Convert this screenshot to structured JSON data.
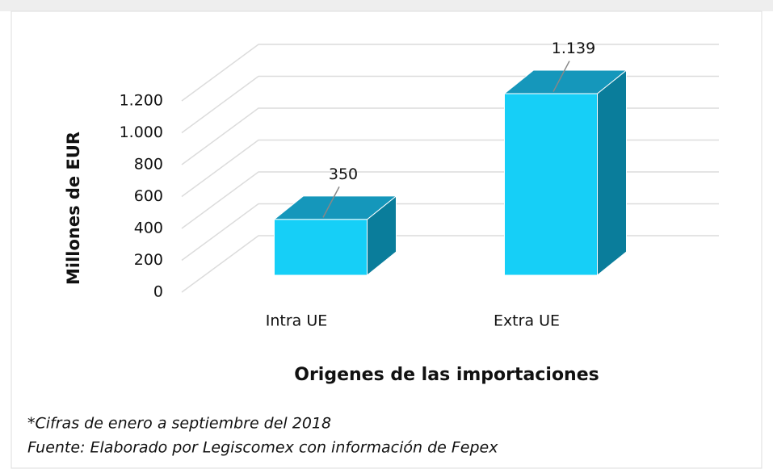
{
  "chart_data": {
    "type": "bar3d",
    "categories": [
      "Intra UE",
      "Extra UE"
    ],
    "values": [
      350,
      1139
    ],
    "value_labels": [
      "350",
      "1.139"
    ],
    "color": "#16cff7",
    "y_label": "Millones de EUR",
    "x_label": "Origenes de las importaciones",
    "ylim": [
      0,
      1200
    ],
    "yticks": [
      0,
      200,
      400,
      600,
      800,
      {
        "value": 1000,
        "label": "1.000"
      },
      {
        "value": 1200,
        "label": "1.200"
      }
    ],
    "grid": true,
    "annotations": [
      "*Cifras de enero a septiembre del 2018",
      "Fuente: Elaborado por Legiscomex con información de Fepex"
    ]
  }
}
